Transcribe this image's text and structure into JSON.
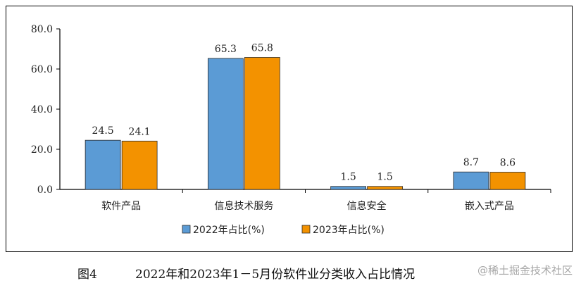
{
  "chart_data": {
    "type": "bar",
    "categories": [
      "软件产品",
      "信息技术服务",
      "信息安全",
      "嵌入式产品"
    ],
    "series": [
      {
        "name": "2022年占比(%)",
        "values": [
          24.5,
          65.3,
          1.5,
          8.7
        ],
        "color": "#5b9bd5"
      },
      {
        "name": "2023年占比(%)",
        "values": [
          24.1,
          65.8,
          1.5,
          8.6
        ],
        "color": "#f39200"
      }
    ],
    "ylim": [
      0,
      80
    ],
    "yticks": [
      "0.0",
      "20.0",
      "40.0",
      "60.0",
      "80.0"
    ],
    "grid": false,
    "legend_position": "bottom"
  },
  "caption": {
    "figure_label": "图4",
    "text": "2022年和2023年1－5月份软件业分类收入占比情况"
  },
  "watermark": "@稀土掘金技术社区"
}
